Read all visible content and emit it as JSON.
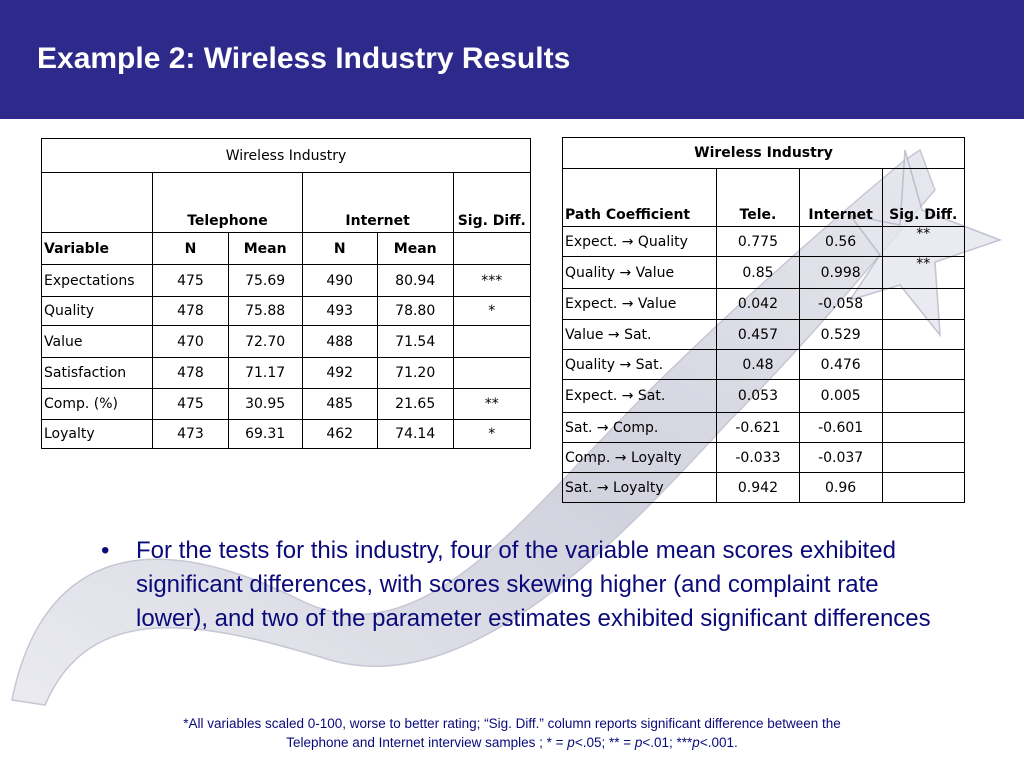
{
  "slide": {
    "title": "Example 2: Wireless Industry Results"
  },
  "table_means": {
    "caption": "Wireless Industry",
    "group_telephone": "Telephone",
    "group_internet": "Internet",
    "sig_header": "Sig. Diff.",
    "col_variable": "Variable",
    "col_n1": "N",
    "col_mean1": "Mean",
    "col_n2": "N",
    "col_mean2": "Mean",
    "rows": [
      {
        "variable": "Expectations",
        "tel_n": "475",
        "tel_mean": "75.69",
        "int_n": "490",
        "int_mean": "80.94",
        "sig": "***"
      },
      {
        "variable": "Quality",
        "tel_n": "478",
        "tel_mean": "75.88",
        "int_n": "493",
        "int_mean": "78.80",
        "sig": "*"
      },
      {
        "variable": "Value",
        "tel_n": "470",
        "tel_mean": "72.70",
        "int_n": "488",
        "int_mean": "71.54",
        "sig": ""
      },
      {
        "variable": "Satisfaction",
        "tel_n": "478",
        "tel_mean": "71.17",
        "int_n": "492",
        "int_mean": "71.20",
        "sig": ""
      },
      {
        "variable": "Comp. (%)",
        "tel_n": "475",
        "tel_mean": "30.95",
        "int_n": "485",
        "int_mean": "21.65",
        "sig": "**"
      },
      {
        "variable": "Loyalty",
        "tel_n": "473",
        "tel_mean": "69.31",
        "int_n": "462",
        "int_mean": "74.14",
        "sig": "*"
      }
    ]
  },
  "table_paths": {
    "caption": "Wireless Industry",
    "col_path": "Path Coefficient",
    "col_tele": "Tele.",
    "col_internet": "Internet",
    "col_sig": "Sig. Diff.",
    "rows": [
      {
        "path": "Expect. → Quality",
        "tele": "0.775",
        "internet": "0.56",
        "sig": "**"
      },
      {
        "path": "Quality → Value",
        "tele": "0.85",
        "internet": "0.998",
        "sig": "**"
      },
      {
        "path": "Expect. → Value",
        "tele": "0.042",
        "internet": "-0.058",
        "sig": ""
      },
      {
        "path": "Value → Sat.",
        "tele": "0.457",
        "internet": "0.529",
        "sig": ""
      },
      {
        "path": "Quality → Sat.",
        "tele": "0.48",
        "internet": "0.476",
        "sig": ""
      },
      {
        "path": "Expect. → Sat.",
        "tele": "0.053",
        "internet": "0.005",
        "sig": ""
      },
      {
        "path": "Sat. → Comp.",
        "tele": "-0.621",
        "internet": "-0.601",
        "sig": ""
      },
      {
        "path": "Comp. → Loyalty",
        "tele": "-0.033",
        "internet": "-0.037",
        "sig": ""
      },
      {
        "path": "Sat. → Loyalty",
        "tele": "0.942",
        "internet": "0.96",
        "sig": ""
      }
    ]
  },
  "bullet": {
    "marker": "•",
    "text": "For the tests for this industry, four of the variable mean scores exhibited significant differences, with scores skewing higher (and complaint rate lower), and two of the parameter estimates exhibited significant differences"
  },
  "footnote": {
    "line1": "*All variables scaled 0-100, worse to better rating; “Sig. Diff.” column reports significant difference between the",
    "line2_a": "Telephone and Internet interview samples ; * = ",
    "p1": "p",
    "line2_b": "<.05; ** = ",
    "p2": "p",
    "line2_c": "<.01; ***",
    "p3": "p",
    "line2_d": "<.001."
  },
  "colors": {
    "header_bg": "#2e2a8c",
    "body_text": "#0a0a7a",
    "swoosh": "#c8c8d8"
  }
}
